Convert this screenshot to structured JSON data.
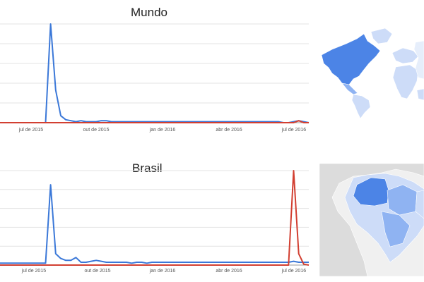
{
  "chart_data": [
    {
      "type": "line",
      "title": "Mundo",
      "x_tick_labels": [
        "jul de 2015",
        "out de 2015",
        "jan de 2016",
        "abr de 2016",
        "jul de 2016"
      ],
      "ylim": [
        0,
        100
      ],
      "grid": true,
      "series": [
        {
          "color": "#3b78d8",
          "values": [
            0,
            0,
            0,
            0,
            0,
            0,
            0,
            0,
            0,
            0,
            100,
            33,
            7,
            3,
            2,
            1,
            2,
            1,
            1,
            1,
            2,
            2,
            1,
            1,
            1,
            1,
            1,
            1,
            1,
            1,
            1,
            1,
            1,
            1,
            1,
            1,
            1,
            1,
            1,
            1,
            1,
            1,
            1,
            1,
            1,
            1,
            1,
            1,
            1,
            1,
            1,
            1,
            1,
            1,
            1,
            1,
            0,
            0,
            1,
            2,
            1,
            0
          ]
        },
        {
          "color": "#d23f31",
          "values": [
            0,
            0,
            0,
            0,
            0,
            0,
            0,
            0,
            0,
            0,
            0,
            0,
            0,
            0,
            0,
            0,
            0,
            0,
            0,
            0,
            0,
            0,
            0,
            0,
            0,
            0,
            0,
            0,
            0,
            0,
            0,
            0,
            0,
            0,
            0,
            0,
            0,
            0,
            0,
            0,
            0,
            0,
            0,
            0,
            0,
            0,
            0,
            0,
            0,
            0,
            0,
            0,
            0,
            0,
            0,
            0,
            0,
            0,
            0,
            2,
            0,
            0
          ]
        }
      ]
    },
    {
      "type": "line",
      "title": "Brasil",
      "x_tick_labels": [
        "jul de 2015",
        "out de 2015",
        "jan de 2016",
        "abr de 2016",
        "jul de 2016"
      ],
      "ylim": [
        0,
        100
      ],
      "grid": true,
      "series": [
        {
          "color": "#3b78d8",
          "values": [
            2,
            2,
            2,
            2,
            2,
            2,
            2,
            2,
            2,
            2,
            85,
            12,
            7,
            5,
            5,
            8,
            3,
            3,
            4,
            5,
            4,
            3,
            3,
            3,
            3,
            3,
            2,
            3,
            3,
            2,
            3,
            3,
            3,
            3,
            3,
            3,
            3,
            3,
            3,
            3,
            3,
            3,
            3,
            3,
            3,
            3,
            3,
            3,
            3,
            3,
            3,
            3,
            3,
            3,
            3,
            3,
            3,
            3,
            4,
            3,
            3,
            3
          ]
        },
        {
          "color": "#d23f31",
          "values": [
            0,
            0,
            0,
            0,
            0,
            0,
            0,
            0,
            0,
            0,
            0,
            0,
            0,
            0,
            0,
            0,
            0,
            0,
            0,
            0,
            0,
            0,
            0,
            0,
            0,
            0,
            0,
            0,
            0,
            0,
            0,
            0,
            0,
            0,
            0,
            0,
            0,
            0,
            0,
            0,
            0,
            0,
            0,
            0,
            0,
            0,
            0,
            0,
            0,
            0,
            0,
            0,
            0,
            0,
            0,
            0,
            0,
            0,
            100,
            12,
            1,
            0
          ]
        }
      ]
    }
  ],
  "maps": {
    "world": {
      "highlight": "#4c84e6",
      "mid": "#8fb3f2",
      "light": "#cddcf8",
      "base": "#e6eefb"
    },
    "brazil": {
      "highlight": "#4c84e6",
      "mid": "#8fb3f2",
      "light": "#cddcf8",
      "outside": "#dcdcdc",
      "ocean": "#f0f0f0"
    }
  }
}
